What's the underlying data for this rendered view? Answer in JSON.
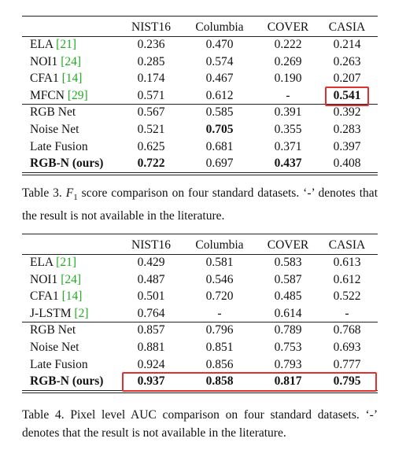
{
  "tables": [
    {
      "header": [
        "NIST16",
        "Columbia",
        "COVER",
        "CASIA"
      ],
      "rows": [
        {
          "method": "ELA",
          "ref": "[21]",
          "values": [
            "0.236",
            "0.470",
            "0.222",
            "0.214"
          ]
        },
        {
          "method": "NOI1",
          "ref": "[24]",
          "values": [
            "0.285",
            "0.574",
            "0.269",
            "0.263"
          ]
        },
        {
          "method": "CFA1",
          "ref": "[14]",
          "values": [
            "0.174",
            "0.467",
            "0.190",
            "0.207"
          ]
        },
        {
          "method": "MFCN",
          "ref": "[29]",
          "values": [
            "0.571",
            "0.612",
            "-",
            "0.541"
          ],
          "bold": [
            3
          ]
        },
        {
          "method": "RGB Net",
          "values": [
            "0.567",
            "0.585",
            "0.391",
            "0.392"
          ]
        },
        {
          "method": "Noise Net",
          "values": [
            "0.521",
            "0.705",
            "0.355",
            "0.283"
          ],
          "bold": [
            1
          ]
        },
        {
          "method": "Late Fusion",
          "values": [
            "0.625",
            "0.681",
            "0.371",
            "0.397"
          ]
        },
        {
          "method": "RGB-N (ours)",
          "values": [
            "0.722",
            "0.697",
            "0.437",
            "0.408"
          ],
          "bold_method": true,
          "bold": [
            0,
            2
          ]
        }
      ],
      "highlight": {
        "row": 3,
        "col": 3
      },
      "caption": {
        "label": "Table 3.",
        "symbol": "F",
        "subscript": "1",
        "text": " score comparison on four standard datasets. ‘-’ denotes that the result is not available in the literature."
      }
    },
    {
      "header": [
        "NIST16",
        "Columbia",
        "COVER",
        "CASIA"
      ],
      "rows": [
        {
          "method": "ELA",
          "ref": "[21]",
          "values": [
            "0.429",
            "0.581",
            "0.583",
            "0.613"
          ]
        },
        {
          "method": "NOI1",
          "ref": "[24]",
          "values": [
            "0.487",
            "0.546",
            "0.587",
            "0.612"
          ]
        },
        {
          "method": "CFA1",
          "ref": "[14]",
          "values": [
            "0.501",
            "0.720",
            "0.485",
            "0.522"
          ]
        },
        {
          "method": "J-LSTM",
          "ref": "[2]",
          "values": [
            "0.764",
            "-",
            "0.614",
            "-"
          ]
        },
        {
          "method": "RGB Net",
          "values": [
            "0.857",
            "0.796",
            "0.789",
            "0.768"
          ]
        },
        {
          "method": "Noise Net",
          "values": [
            "0.881",
            "0.851",
            "0.753",
            "0.693"
          ]
        },
        {
          "method": "Late Fusion",
          "values": [
            "0.924",
            "0.856",
            "0.793",
            "0.777"
          ]
        },
        {
          "method": "RGB-N (ours)",
          "values": [
            "0.937",
            "0.858",
            "0.817",
            "0.795"
          ],
          "bold_method": true,
          "bold": [
            0,
            1,
            2,
            3
          ]
        }
      ],
      "highlight": {
        "row": 7
      },
      "caption": {
        "label": "Table 4.",
        "text": " Pixel level AUC comparison on four standard datasets. ‘-’ denotes that the result is not available in the literature."
      }
    }
  ]
}
